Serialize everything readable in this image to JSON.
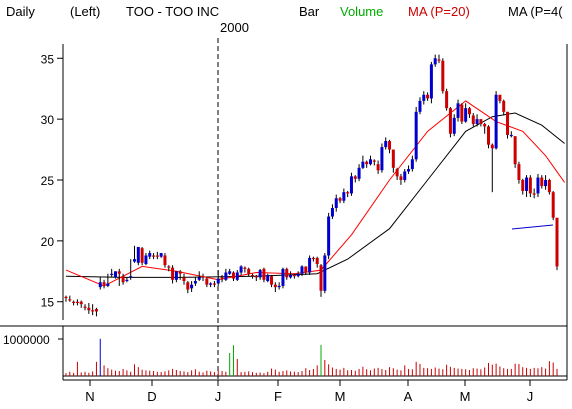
{
  "header": {
    "period": "Daily",
    "scale": "(Left)",
    "symbol": "TOO - TOO INC",
    "style": "Bar",
    "volume": "Volume",
    "ma1": "MA (P=20)",
    "ma2": "MA (P=4("
  },
  "colors": {
    "up": "#0000cc",
    "down": "#cc0000",
    "ma20": "#ff0000",
    "ma40": "#000000",
    "volume_label": "#00aa00",
    "volume_other": "#00aa00",
    "volume_max": "#0000cc",
    "axis": "#000000",
    "background": "#ffffff"
  },
  "chart_data": [
    {
      "type": "line",
      "title": "TOO - TOO INC",
      "year_label": "2000",
      "x_labels": [
        "N",
        "D",
        "J",
        "F",
        "M",
        "A",
        "M",
        "J"
      ],
      "y_ticks": [
        15,
        20,
        25,
        30,
        35
      ],
      "ylim": [
        13.5,
        36.5
      ],
      "series": [
        {
          "name": "Price",
          "style": "candlestick",
          "close": [
            15.3,
            15.2,
            15.0,
            14.9,
            14.8,
            14.6,
            14.3,
            14.2,
            14.2,
            16.6,
            16.4,
            16.5,
            17.3,
            17.5,
            17.3,
            16.6,
            16.8,
            17.1,
            18.5,
            19.5,
            18.2,
            18.8,
            19.0,
            18.7,
            18.7,
            19.0,
            18.0,
            17.8,
            16.8,
            17.5,
            17.3,
            16.7,
            16.0,
            16.4,
            16.7,
            17.0,
            17.0,
            16.4,
            16.5,
            16.4,
            16.9,
            16.9,
            17.4,
            17.5,
            16.9,
            17.4,
            17.9,
            17.8,
            17.3,
            17.2,
            17.0,
            17.6,
            16.8,
            17.2,
            16.4,
            16.2,
            16.3,
            17.7,
            17.0,
            17.2,
            17.1,
            17.3,
            17.9,
            17.4,
            18.6,
            18.6,
            18.1,
            15.9,
            18.8,
            22.0,
            22.7,
            23.5,
            23.3,
            24.0,
            23.9,
            25.3,
            25.1,
            26.0,
            26.5,
            26.3,
            26.7,
            26.5,
            25.8,
            27.7,
            28.2,
            27.5,
            26.0,
            25.3,
            25.0,
            25.7,
            25.9,
            26.7,
            30.6,
            31.5,
            32.0,
            31.7,
            34.5,
            35.0,
            34.9,
            32.3,
            30.9,
            28.8,
            30.1,
            31.3,
            29.8,
            30.9,
            30.4,
            29.6,
            30.0,
            29.6,
            29.4,
            27.9,
            27.6,
            32.0,
            31.5,
            30.6,
            28.7,
            28.7,
            26.3,
            25.0,
            24.1,
            25.2,
            23.9,
            23.9,
            25.2,
            24.5,
            25.0,
            24.0,
            21.9,
            17.9
          ],
          "up": [
            false,
            false,
            false,
            false,
            false,
            false,
            false,
            false,
            false,
            true,
            false,
            true,
            true,
            true,
            false,
            false,
            true,
            true,
            true,
            true,
            false,
            true,
            true,
            false,
            false,
            true,
            false,
            false,
            false,
            true,
            false,
            false,
            false,
            true,
            true,
            true,
            false,
            false,
            true,
            false,
            true,
            false,
            true,
            true,
            false,
            true,
            true,
            false,
            false,
            false,
            false,
            true,
            false,
            true,
            false,
            false,
            true,
            true,
            false,
            true,
            false,
            true,
            true,
            false,
            true,
            false,
            false,
            false,
            true,
            true,
            true,
            true,
            false,
            true,
            false,
            true,
            false,
            true,
            true,
            false,
            true,
            false,
            false,
            true,
            true,
            false,
            false,
            false,
            false,
            true,
            true,
            true,
            true,
            true,
            true,
            false,
            true,
            true,
            false,
            false,
            false,
            false,
            true,
            true,
            false,
            true,
            false,
            false,
            true,
            false,
            false,
            false,
            false,
            true,
            false,
            false,
            false,
            true,
            false,
            false,
            false,
            true,
            false,
            false,
            true,
            false,
            true,
            false,
            false,
            false
          ],
          "high": [
            15.5,
            15.5,
            15.1,
            15.2,
            15.1,
            14.8,
            14.9,
            14.8,
            14.5,
            17.0,
            16.8,
            17.3,
            17.7,
            17.5,
            17.7,
            17.3,
            17.0,
            18.5,
            19.6,
            19.5,
            19.5,
            19.0,
            19.2,
            19.0,
            19.1,
            19.0,
            19.0,
            18.0,
            18.0,
            17.5,
            17.6,
            17.3,
            16.7,
            16.7,
            17.0,
            17.5,
            17.3,
            17.0,
            16.6,
            16.7,
            17.6,
            17.2,
            17.7,
            17.7,
            17.5,
            17.6,
            18.0,
            17.9,
            17.8,
            17.3,
            17.2,
            17.7,
            17.8,
            17.3,
            17.2,
            16.6,
            16.6,
            17.8,
            17.8,
            17.5,
            17.3,
            17.5,
            18.0,
            17.9,
            18.8,
            18.7,
            18.7,
            18.1,
            19.0,
            22.3,
            23.0,
            23.8,
            23.6,
            24.3,
            24.1,
            25.6,
            25.4,
            26.3,
            27.0,
            26.6,
            27.0,
            26.7,
            26.6,
            28.0,
            28.5,
            28.3,
            27.5,
            26.0,
            25.5,
            25.9,
            26.2,
            27.0,
            31.0,
            31.8,
            32.3,
            32.2,
            34.7,
            35.3,
            35.3,
            35.0,
            32.5,
            31.0,
            30.4,
            31.6,
            31.3,
            31.3,
            31.0,
            30.5,
            30.4,
            30.0,
            29.7,
            29.5,
            28.0,
            32.3,
            32.0,
            31.6,
            30.6,
            29.0,
            28.6,
            26.5,
            25.1,
            25.4,
            25.4,
            24.3,
            25.5,
            25.4,
            25.4,
            25.1,
            24.1,
            21.8
          ],
          "low": [
            15.0,
            15.0,
            14.7,
            14.7,
            14.5,
            14.3,
            14.0,
            13.9,
            13.8,
            16.0,
            16.1,
            16.2,
            17.0,
            16.9,
            16.3,
            16.4,
            16.6,
            16.8,
            18.2,
            18.0,
            18.0,
            18.0,
            18.5,
            18.5,
            18.5,
            18.6,
            17.8,
            17.5,
            16.5,
            16.6,
            16.8,
            16.4,
            15.7,
            15.8,
            16.3,
            16.7,
            16.7,
            16.2,
            16.2,
            16.2,
            16.3,
            16.6,
            16.7,
            17.2,
            16.7,
            16.7,
            17.2,
            17.4,
            17.1,
            16.9,
            16.7,
            16.8,
            16.6,
            16.6,
            16.2,
            15.8,
            16.0,
            16.1,
            16.8,
            16.9,
            16.9,
            17.0,
            17.1,
            17.2,
            17.2,
            18.3,
            17.8,
            15.4,
            15.7,
            18.5,
            21.8,
            22.4,
            23.1,
            23.1,
            23.6,
            23.7,
            24.8,
            24.9,
            25.9,
            26.0,
            26.2,
            26.2,
            25.5,
            25.6,
            27.5,
            27.2,
            25.6,
            25.0,
            24.6,
            24.8,
            25.5,
            25.7,
            26.5,
            30.4,
            31.2,
            31.5,
            31.3,
            34.3,
            34.6,
            32.1,
            30.7,
            28.5,
            28.6,
            29.8,
            29.6,
            29.7,
            30.1,
            29.4,
            29.4,
            29.4,
            28.8,
            27.6,
            24.0,
            27.5,
            31.3,
            30.3,
            28.4,
            28.5,
            26.0,
            24.7,
            23.8,
            23.6,
            23.6,
            23.5,
            23.6,
            24.3,
            24.2,
            23.8,
            21.7,
            17.6
          ],
          "open": [
            15.4,
            15.1,
            15.0,
            15.0,
            15.0,
            14.6,
            14.5,
            14.3,
            14.4,
            16.2,
            16.6,
            16.3,
            17.2,
            17.0,
            17.5,
            17.1,
            16.8,
            17.0,
            18.3,
            18.2,
            19.4,
            18.1,
            18.7,
            18.8,
            18.8,
            18.7,
            18.8,
            17.9,
            17.8,
            16.8,
            17.5,
            17.0,
            16.6,
            16.1,
            16.5,
            16.8,
            17.1,
            16.9,
            16.4,
            16.5,
            16.5,
            17.0,
            16.8,
            17.3,
            17.4,
            16.8,
            17.4,
            17.8,
            17.7,
            17.2,
            17.1,
            17.0,
            17.7,
            16.7,
            17.1,
            16.4,
            16.2,
            16.3,
            17.7,
            17.0,
            17.2,
            17.1,
            17.3,
            17.9,
            17.4,
            18.6,
            18.6,
            18.0,
            15.9,
            18.8,
            22.0,
            22.7,
            23.5,
            23.3,
            24.0,
            23.9,
            25.3,
            25.1,
            26.0,
            26.5,
            26.3,
            26.6,
            26.3,
            25.8,
            27.7,
            28.2,
            27.5,
            25.9,
            25.3,
            25.0,
            25.7,
            25.9,
            26.7,
            30.6,
            31.5,
            32.0,
            31.7,
            34.5,
            34.9,
            34.8,
            32.3,
            30.9,
            28.8,
            30.1,
            31.2,
            29.8,
            30.9,
            30.3,
            29.6,
            30.0,
            29.6,
            29.4,
            27.9,
            27.6,
            32.0,
            31.5,
            30.6,
            28.7,
            28.6,
            26.3,
            25.0,
            24.1,
            25.2,
            23.9,
            23.9,
            25.2,
            24.5,
            25.0,
            24.0,
            21.9
          ]
        },
        {
          "name": "MA (P=20)",
          "color": "#ff0000",
          "points": [
            [
              0,
              17.6
            ],
            [
              10,
              16.3
            ],
            [
              20,
              17.9
            ],
            [
              29,
              17.5
            ],
            [
              40,
              16.8
            ],
            [
              50,
              17.4
            ],
            [
              60,
              17.3
            ],
            [
              67,
              17.6
            ],
            [
              75,
              20.5
            ],
            [
              85,
              25.0
            ],
            [
              95,
              29.0
            ],
            [
              105,
              31.5
            ],
            [
              113,
              29.8
            ],
            [
              120,
              29.0
            ],
            [
              126,
              27.0
            ],
            [
              131,
              24.8
            ]
          ]
        },
        {
          "name": "MA (P=4(",
          "color": "#000000",
          "points": [
            [
              0,
              17.1
            ],
            [
              15,
              17.0
            ],
            [
              30,
              17.0
            ],
            [
              50,
              17.1
            ],
            [
              66,
              17.3
            ],
            [
              74,
              18.5
            ],
            [
              85,
              21.0
            ],
            [
              95,
              25.0
            ],
            [
              105,
              29.0
            ],
            [
              112,
              30.2
            ],
            [
              118,
              30.5
            ],
            [
              125,
              29.5
            ],
            [
              131,
              28.0
            ]
          ]
        }
      ]
    },
    {
      "type": "bar",
      "title": "Volume",
      "y_ticks": [
        1000000
      ],
      "y_tick_labels": [
        "1000000"
      ],
      "ylim": [
        0,
        1300000
      ],
      "x_labels": [
        "N",
        "D",
        "J",
        "F",
        "M",
        "A",
        "M",
        "J"
      ],
      "values": [
        80000,
        120000,
        90000,
        400000,
        100000,
        120000,
        90000,
        130000,
        400000,
        1050000,
        300000,
        220000,
        180000,
        150000,
        140000,
        200000,
        160000,
        120000,
        330000,
        250000,
        180000,
        160000,
        150000,
        140000,
        120000,
        110000,
        130000,
        160000,
        200000,
        170000,
        140000,
        130000,
        110000,
        160000,
        190000,
        120000,
        100000,
        150000,
        130000,
        110000,
        160000,
        140000,
        120000,
        650000,
        870000,
        480000,
        110000,
        120000,
        130000,
        110000,
        90000,
        100000,
        80000,
        120000,
        210000,
        180000,
        120000,
        140000,
        160000,
        130000,
        120000,
        110000,
        140000,
        220000,
        170000,
        200000,
        300000,
        880000,
        450000,
        330000,
        240000,
        200000,
        180000,
        230000,
        160000,
        170000,
        150000,
        200000,
        260000,
        190000,
        160000,
        210000,
        230000,
        200000,
        170000,
        250000,
        220000,
        180000,
        160000,
        300000,
        200000,
        190000,
        400000,
        340000,
        230000,
        220000,
        200000,
        240000,
        210000,
        190000,
        320000,
        260000,
        230000,
        210000,
        200000,
        190000,
        170000,
        220000,
        210000,
        190000,
        240000,
        370000,
        320000,
        350000,
        270000,
        220000,
        200000,
        200000,
        350000,
        340000,
        250000,
        230000,
        200000,
        230000,
        220000,
        250000,
        210000,
        420000,
        380000,
        200000
      ],
      "highlight_index": 9
    }
  ]
}
